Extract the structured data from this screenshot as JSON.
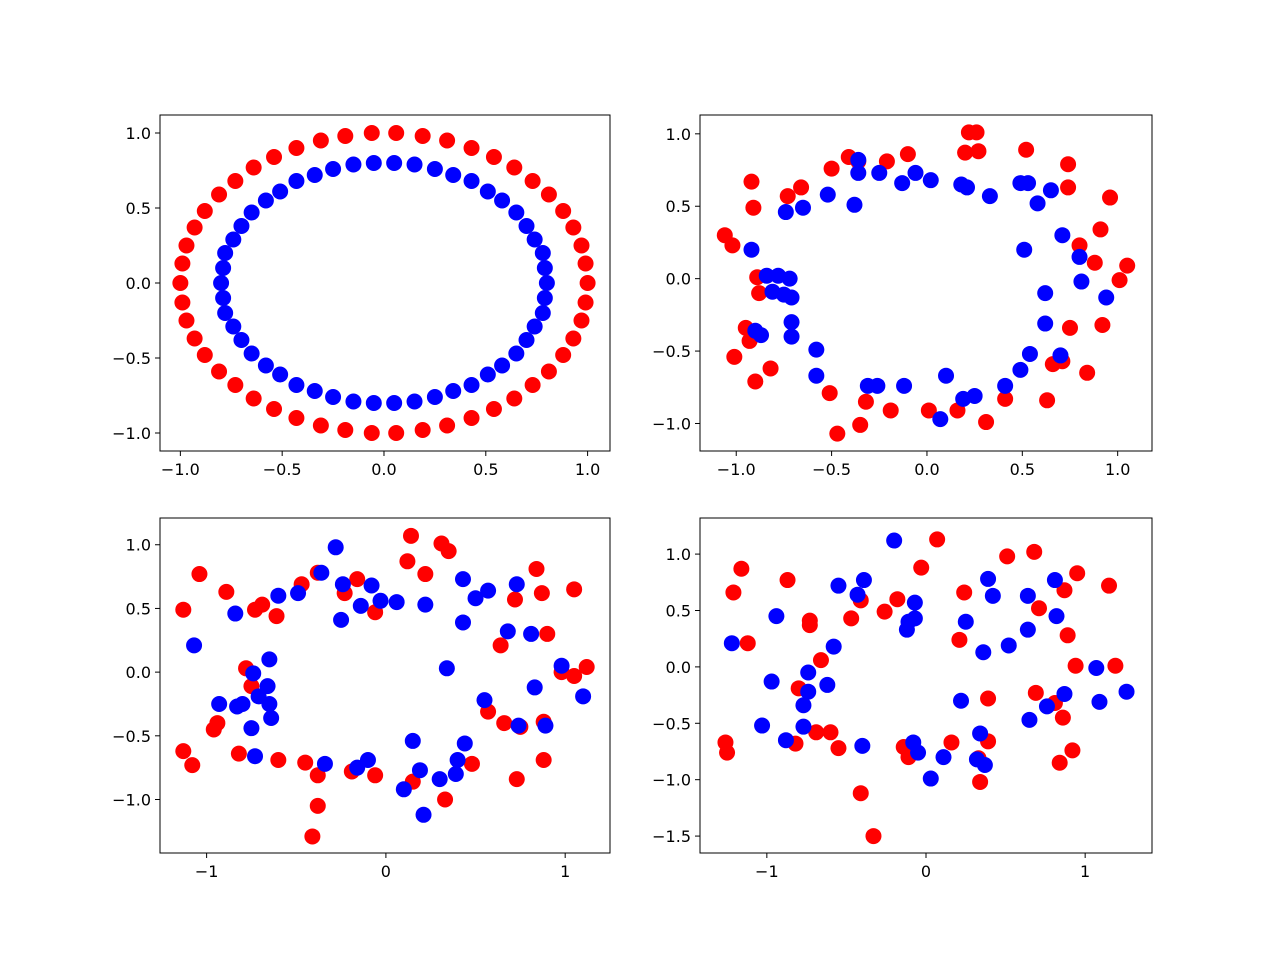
{
  "chart_data": [
    {
      "type": "scatter",
      "xlim": [
        -1.1,
        1.11
      ],
      "ylim": [
        -1.12,
        1.12
      ],
      "xticks": [
        {
          "value": -1,
          "label": "−1.0"
        },
        {
          "value": -0.5,
          "label": "−0.5"
        },
        {
          "value": 0,
          "label": "0.0"
        },
        {
          "value": 0.5,
          "label": "0.5"
        },
        {
          "value": 1,
          "label": "1.0"
        }
      ],
      "yticks": [
        {
          "value": -1,
          "label": "−1.0"
        },
        {
          "value": -0.5,
          "label": "−0.5"
        },
        {
          "value": 0,
          "label": "0.0"
        },
        {
          "value": 0.5,
          "label": "0.5"
        },
        {
          "value": 1,
          "label": "1.0"
        }
      ],
      "series": [
        {
          "color": "#ff0000",
          "x": [
            1,
            0.99,
            0.97,
            0.93,
            0.88,
            0.81,
            0.73,
            0.64,
            0.54,
            0.43,
            0.31,
            0.19,
            0.06,
            -0.06,
            -0.19,
            -0.31,
            -0.43,
            -0.54,
            -0.64,
            -0.73,
            -0.81,
            -0.88,
            -0.93,
            -0.97,
            -0.99,
            -1,
            -0.99,
            -0.97,
            -0.93,
            -0.88,
            -0.81,
            -0.73,
            -0.64,
            -0.54,
            -0.43,
            -0.31,
            -0.19,
            -0.06,
            0.06,
            0.19,
            0.31,
            0.43,
            0.54,
            0.64,
            0.73,
            0.81,
            0.88,
            0.93,
            0.97,
            0.99
          ],
          "y": [
            0,
            0.13,
            0.25,
            0.37,
            0.48,
            0.59,
            0.68,
            0.77,
            0.84,
            0.9,
            0.95,
            0.98,
            1,
            1,
            0.98,
            0.95,
            0.9,
            0.84,
            0.77,
            0.68,
            0.59,
            0.48,
            0.37,
            0.25,
            0.13,
            0,
            -0.13,
            -0.25,
            -0.37,
            -0.48,
            -0.59,
            -0.68,
            -0.77,
            -0.84,
            -0.9,
            -0.95,
            -0.98,
            -1,
            -1,
            -0.98,
            -0.95,
            -0.9,
            -0.84,
            -0.77,
            -0.68,
            -0.59,
            -0.48,
            -0.37,
            -0.25,
            -0.13
          ]
        },
        {
          "color": "#0000ff",
          "x": [
            0.8,
            0.79,
            0.78,
            0.74,
            0.7,
            0.65,
            0.58,
            0.51,
            0.43,
            0.34,
            0.25,
            0.15,
            0.05,
            -0.05,
            -0.15,
            -0.25,
            -0.34,
            -0.43,
            -0.51,
            -0.58,
            -0.65,
            -0.7,
            -0.74,
            -0.78,
            -0.79,
            -0.8,
            -0.79,
            -0.78,
            -0.74,
            -0.7,
            -0.65,
            -0.58,
            -0.51,
            -0.43,
            -0.34,
            -0.25,
            -0.15,
            -0.05,
            0.05,
            0.15,
            0.25,
            0.34,
            0.43,
            0.51,
            0.58,
            0.65,
            0.7,
            0.74,
            0.78,
            0.79
          ],
          "y": [
            0,
            0.1,
            0.2,
            0.29,
            0.38,
            0.47,
            0.55,
            0.61,
            0.68,
            0.72,
            0.76,
            0.79,
            0.8,
            0.8,
            0.79,
            0.76,
            0.72,
            0.68,
            0.61,
            0.55,
            0.47,
            0.38,
            0.29,
            0.2,
            0.1,
            0,
            -0.1,
            -0.2,
            -0.29,
            -0.38,
            -0.47,
            -0.55,
            -0.61,
            -0.68,
            -0.72,
            -0.76,
            -0.79,
            -0.8,
            -0.8,
            -0.79,
            -0.76,
            -0.72,
            -0.68,
            -0.61,
            -0.55,
            -0.47,
            -0.38,
            -0.29,
            -0.2,
            -0.1
          ]
        }
      ]
    },
    {
      "type": "scatter",
      "xlim": [
        -1.19,
        1.18
      ],
      "ylim": [
        -1.19,
        1.13
      ],
      "xticks": [
        {
          "value": -1,
          "label": "−1.0"
        },
        {
          "value": -0.5,
          "label": "−0.5"
        },
        {
          "value": 0,
          "label": "0.0"
        },
        {
          "value": 0.5,
          "label": "0.5"
        },
        {
          "value": 1,
          "label": "1.0"
        }
      ],
      "yticks": [
        {
          "value": -1,
          "label": "−1.0"
        },
        {
          "value": -0.5,
          "label": "−0.5"
        },
        {
          "value": 0,
          "label": "0.0"
        },
        {
          "value": 0.5,
          "label": "0.5"
        },
        {
          "value": 1,
          "label": "1.0"
        }
      ],
      "series": [
        {
          "color": "#ff0000",
          "x": [
            -1.06,
            -1.02,
            -0.92,
            -0.91,
            -0.89,
            -0.88,
            -0.95,
            -0.93,
            -1.01,
            -0.9,
            -0.82,
            -0.73,
            -0.66,
            -0.5,
            -0.41,
            -0.36,
            -0.21,
            -0.1,
            0.22,
            0.26,
            0.2,
            0.27,
            0.52,
            0.74,
            0.74,
            0.96,
            0.91,
            0.8,
            0.88,
            1.05,
            1.01,
            0.92,
            0.75,
            0.66,
            0.71,
            0.84,
            0.63,
            0.41,
            0.31,
            0.16,
            0.01,
            -0.19,
            -0.32,
            -0.35,
            -0.47,
            -0.51
          ],
          "y": [
            0.3,
            0.23,
            0.67,
            0.49,
            0.01,
            -0.1,
            -0.34,
            -0.43,
            -0.54,
            -0.71,
            -0.62,
            0.57,
            0.63,
            0.76,
            0.84,
            0.81,
            0.81,
            0.86,
            1.01,
            1.01,
            0.87,
            0.88,
            0.89,
            0.79,
            0.63,
            0.56,
            0.34,
            0.23,
            0.11,
            0.09,
            -0.01,
            -0.32,
            -0.34,
            -0.59,
            -0.57,
            -0.65,
            -0.84,
            -0.83,
            -0.99,
            -0.91,
            -0.91,
            -0.91,
            -0.85,
            -1.01,
            -1.07,
            -0.79
          ]
        },
        {
          "color": "#0000ff",
          "x": [
            -0.92,
            -0.84,
            -0.78,
            -0.72,
            -0.75,
            -0.81,
            -0.71,
            -0.9,
            -0.87,
            -0.71,
            -0.71,
            -0.58,
            -0.58,
            -0.31,
            -0.26,
            -0.12,
            0.1,
            0.07,
            0.19,
            0.25,
            0.41,
            0.49,
            0.54,
            0.7,
            0.62,
            0.62,
            0.51,
            0.8,
            0.81,
            0.94,
            0.71,
            0.65,
            0.58,
            0.49,
            0.33,
            0.18,
            0.21,
            0.02,
            -0.06,
            -0.13,
            -0.25,
            -0.36,
            -0.36,
            -0.38,
            -0.52,
            -0.65,
            -0.74,
            0.53
          ],
          "y": [
            0.2,
            0.02,
            0.02,
            0,
            -0.11,
            -0.09,
            -0.13,
            -0.36,
            -0.39,
            -0.3,
            -0.4,
            -0.49,
            -0.67,
            -0.74,
            -0.74,
            -0.74,
            -0.67,
            -0.97,
            -0.83,
            -0.81,
            -0.74,
            -0.63,
            -0.52,
            -0.53,
            -0.31,
            -0.1,
            0.2,
            0.15,
            -0.02,
            -0.13,
            0.3,
            0.61,
            0.52,
            0.66,
            0.57,
            0.65,
            0.63,
            0.68,
            0.73,
            0.66,
            0.73,
            0.73,
            0.82,
            0.51,
            0.58,
            0.49,
            0.46,
            0.66
          ]
        }
      ]
    },
    {
      "type": "scatter",
      "xlim": [
        -1.26,
        1.25
      ],
      "ylim": [
        -1.42,
        1.21
      ],
      "xticks": [
        {
          "value": -1,
          "label": "−1"
        },
        0,
        1
      ],
      "yticks": [
        {
          "value": -1,
          "label": "−1.0"
        },
        {
          "value": -0.5,
          "label": "−0.5"
        },
        {
          "value": 0,
          "label": "0.0"
        },
        {
          "value": 0.5,
          "label": "0.5"
        },
        {
          "value": 1,
          "label": "1.0"
        }
      ],
      "series": [
        {
          "color": "#ff0000",
          "x": [
            -1.13,
            -1.04,
            -0.89,
            -0.73,
            -0.69,
            -0.61,
            -0.47,
            -0.38,
            -0.23,
            -0.16,
            -0.06,
            0.12,
            0.14,
            0.22,
            0.31,
            0.35,
            0.72,
            0.84,
            0.87,
            0.9,
            0.64,
            0.57,
            0.66,
            0.75,
            0.88,
            0.88,
            0.73,
            0.48,
            0.33,
            0.15,
            -0.06,
            -0.19,
            -0.38,
            -0.38,
            -0.41,
            -0.45,
            -0.6,
            -0.82,
            -0.94,
            -0.96,
            -1.08,
            -1.13,
            -0.78,
            -0.75,
            0.98,
            1.05,
            1.12,
            1.05
          ],
          "y": [
            0.49,
            0.77,
            0.63,
            0.49,
            0.53,
            0.44,
            0.69,
            0.78,
            0.62,
            0.73,
            0.47,
            0.87,
            1.07,
            0.77,
            1.01,
            0.95,
            0.57,
            0.81,
            0.62,
            0.3,
            0.21,
            -0.31,
            -0.4,
            -0.43,
            -0.39,
            -0.69,
            -0.84,
            -0.72,
            -1,
            -0.86,
            -0.81,
            -0.78,
            -0.81,
            -1.05,
            -1.29,
            -0.71,
            -0.69,
            -0.64,
            -0.4,
            -0.45,
            -0.73,
            -0.62,
            0.03,
            -0.11,
            0,
            -0.03,
            0.04,
            0.65
          ]
        },
        {
          "color": "#0000ff",
          "x": [
            -1.07,
            -0.84,
            -0.6,
            -0.49,
            -0.36,
            -0.28,
            -0.24,
            -0.25,
            -0.14,
            -0.08,
            -0.03,
            0.06,
            0.22,
            0.34,
            0.43,
            0.43,
            0.5,
            0.57,
            0.55,
            0.68,
            0.73,
            0.81,
            0.83,
            0.98,
            0.89,
            1.1,
            0.74,
            0.44,
            0.4,
            0.39,
            0.3,
            0.21,
            0.19,
            0.1,
            0.15,
            -0.1,
            -0.16,
            -0.34,
            -0.73,
            -0.75,
            -0.64,
            -0.65,
            -0.71,
            -0.8,
            -0.93,
            -0.83,
            -0.74,
            -0.65,
            -0.66
          ],
          "y": [
            0.21,
            0.46,
            0.6,
            0.62,
            0.78,
            0.98,
            0.69,
            0.41,
            0.52,
            0.68,
            0.56,
            0.55,
            0.53,
            0.03,
            0.73,
            0.39,
            0.58,
            0.64,
            -0.22,
            0.32,
            0.69,
            0.3,
            -0.12,
            0.05,
            -0.42,
            -0.19,
            -0.42,
            -0.56,
            -0.69,
            -0.8,
            -0.84,
            -1.12,
            -0.77,
            -0.92,
            -0.54,
            -0.69,
            -0.75,
            -0.72,
            -0.66,
            -0.44,
            -0.36,
            -0.25,
            -0.19,
            -0.25,
            -0.25,
            -0.27,
            -0.01,
            0.1,
            -0.11
          ]
        }
      ]
    },
    {
      "type": "scatter",
      "xlim": [
        -1.42,
        1.42
      ],
      "ylim": [
        -1.65,
        1.32
      ],
      "xticks": [
        {
          "value": -1,
          "label": "−1"
        },
        0,
        1
      ],
      "yticks": [
        {
          "value": -1.5,
          "label": "−1.5"
        },
        {
          "value": -1,
          "label": "−1.0"
        },
        {
          "value": -0.5,
          "label": "−0.5"
        },
        {
          "value": 0,
          "label": "0.0"
        },
        {
          "value": 0.5,
          "label": "0.5"
        },
        {
          "value": 1,
          "label": "1.0"
        }
      ],
      "series": [
        {
          "color": "#ff0000",
          "x": [
            -1.16,
            -1.21,
            -1.12,
            -1.26,
            -1.25,
            -0.87,
            -0.73,
            -0.73,
            -0.66,
            -0.8,
            -0.82,
            -0.69,
            -0.6,
            -0.55,
            -0.47,
            -0.41,
            -0.41,
            -0.33,
            -0.26,
            -0.18,
            -0.11,
            -0.14,
            -0.03,
            0.07,
            0.16,
            0.21,
            0.24,
            0.33,
            0.34,
            0.39,
            0.39,
            0.51,
            0.68,
            0.71,
            0.69,
            0.81,
            0.86,
            0.84,
            0.87,
            0.89,
            0.94,
            0.92,
            0.95,
            1.15,
            1.19
          ],
          "y": [
            0.87,
            0.66,
            0.21,
            -0.67,
            -0.76,
            0.77,
            0.41,
            0.37,
            0.06,
            -0.19,
            -0.68,
            -0.58,
            -0.58,
            -0.72,
            0.43,
            0.59,
            -1.12,
            -1.5,
            0.49,
            0.6,
            -0.8,
            -0.71,
            0.88,
            1.13,
            -0.67,
            0.24,
            0.66,
            -0.81,
            -1.02,
            -0.66,
            -0.28,
            0.98,
            1.02,
            0.52,
            -0.23,
            -0.32,
            -0.45,
            -0.85,
            0.68,
            0.28,
            0.01,
            -0.74,
            0.83,
            0.72,
            0.01
          ]
        },
        {
          "color": "#0000ff",
          "x": [
            -1.22,
            -0.94,
            -0.97,
            -1.03,
            -0.88,
            -0.77,
            -0.77,
            -0.74,
            -0.74,
            -0.62,
            -0.58,
            -0.55,
            -0.43,
            -0.39,
            -0.4,
            -0.2,
            -0.12,
            -0.11,
            -0.07,
            -0.07,
            -0.08,
            -0.05,
            0.03,
            0.11,
            0.22,
            0.25,
            0.32,
            0.34,
            0.37,
            0.36,
            0.39,
            0.42,
            0.64,
            0.64,
            0.65,
            0.76,
            0.81,
            0.82,
            0.87,
            1.07,
            1.09,
            1.26,
            0.52
          ],
          "y": [
            0.21,
            0.45,
            -0.13,
            -0.52,
            -0.65,
            -0.53,
            -0.34,
            -0.22,
            -0.05,
            -0.16,
            0.18,
            0.72,
            0.64,
            0.77,
            -0.7,
            1.12,
            0.33,
            0.4,
            0.57,
            0.43,
            -0.67,
            -0.76,
            -0.99,
            -0.8,
            -0.3,
            0.4,
            -0.82,
            -0.59,
            -0.87,
            0.13,
            0.78,
            0.63,
            0.63,
            0.33,
            -0.47,
            -0.35,
            0.77,
            0.45,
            -0.24,
            -0.01,
            -0.31,
            -0.22,
            0.19
          ]
        }
      ]
    }
  ]
}
